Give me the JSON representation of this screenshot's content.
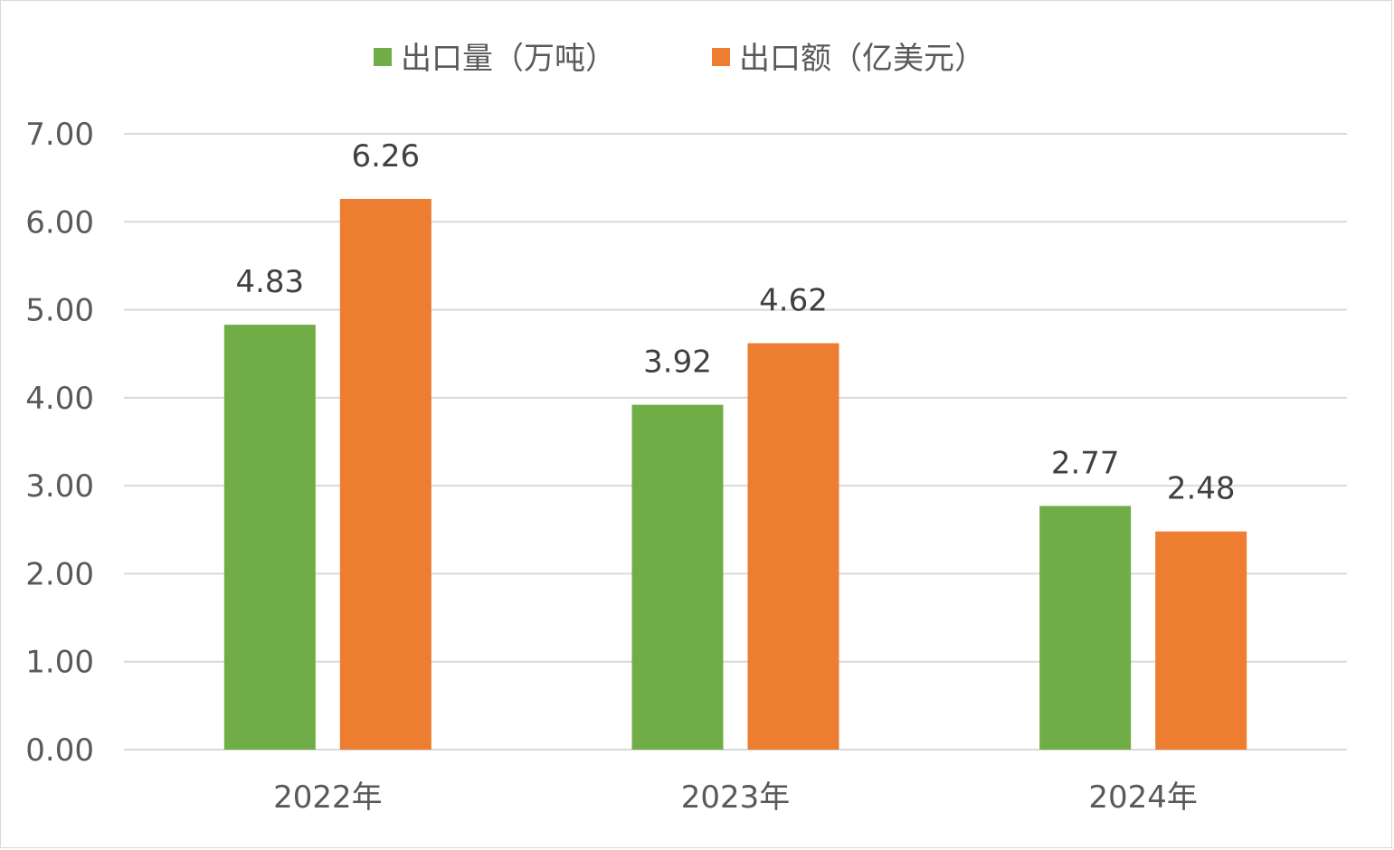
{
  "chart_data": {
    "type": "bar",
    "categories": [
      "2022年",
      "2023年",
      "2024年"
    ],
    "series": [
      {
        "name": "出口量（万吨）",
        "values": [
          4.83,
          3.92,
          2.77
        ],
        "color": "#70AD47"
      },
      {
        "name": "出口额（亿美元）",
        "values": [
          6.26,
          4.62,
          2.48
        ],
        "color": "#ED7D31"
      }
    ],
    "ylim": [
      0,
      7
    ],
    "yticks": [
      "0.00",
      "1.00",
      "2.00",
      "3.00",
      "4.00",
      "5.00",
      "6.00",
      "7.00"
    ],
    "value_labels": [
      [
        "4.83",
        "3.92",
        "2.77"
      ],
      [
        "6.26",
        "4.62",
        "2.48"
      ]
    ],
    "grid": true,
    "gridline_color": "#d9d9d9",
    "legend_position": "top-center"
  }
}
